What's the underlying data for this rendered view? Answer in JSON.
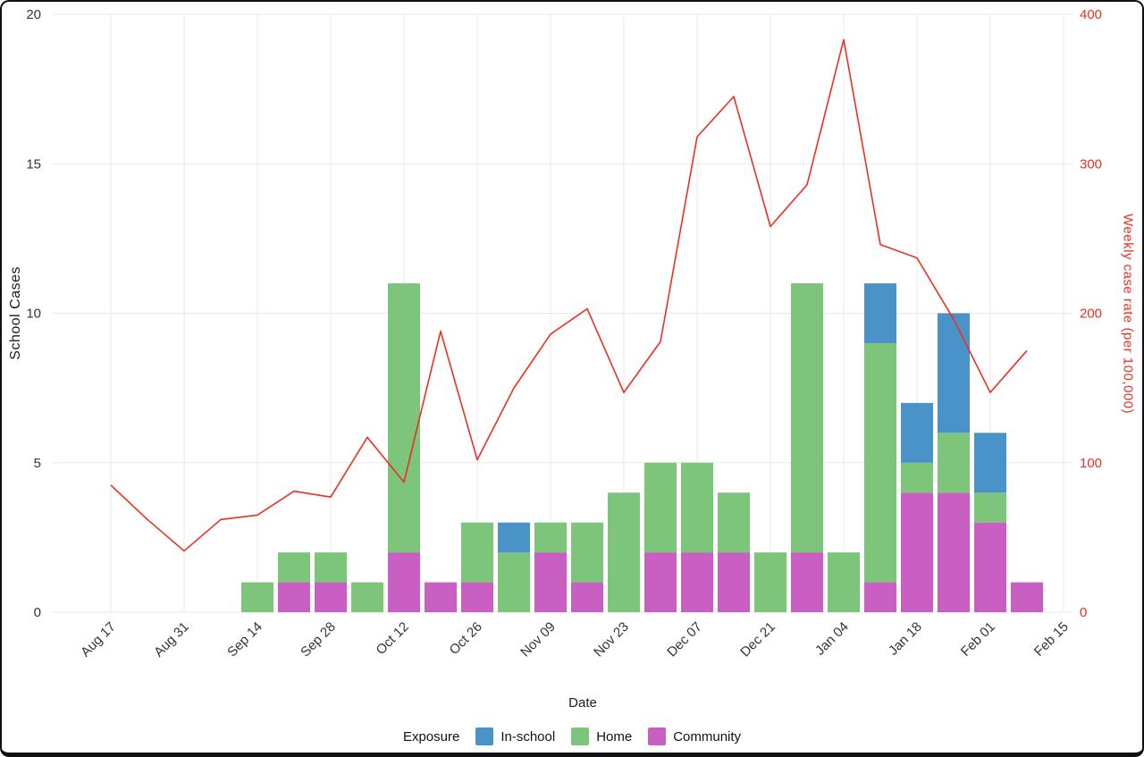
{
  "figure": {
    "border_color": "#111111",
    "background": "#ffffff"
  },
  "chart_data": {
    "type": "bar",
    "subtype": "stacked-weekly-bars-with-line-overlay",
    "xlabel": "Date",
    "x_tick_labels": [
      "Aug 17",
      "Aug 31",
      "Sep 14",
      "Sep 28",
      "Oct 12",
      "Oct 26",
      "Nov 09",
      "Nov 23",
      "Dec 07",
      "Dec 21",
      "Jan 04",
      "Jan 18",
      "Feb 01",
      "Feb 15"
    ],
    "weeks": [
      "Aug 17",
      "Aug 24",
      "Aug 31",
      "Sep 07",
      "Sep 14",
      "Sep 21",
      "Sep 28",
      "Oct 05",
      "Oct 12",
      "Oct 19",
      "Oct 26",
      "Nov 02",
      "Nov 09",
      "Nov 16",
      "Nov 23",
      "Nov 30",
      "Dec 07",
      "Dec 14",
      "Dec 21",
      "Dec 28",
      "Jan 04",
      "Jan 11",
      "Jan 18",
      "Jan 25",
      "Feb 01",
      "Feb 08"
    ],
    "stack_order_bottom_to_top": [
      "Community",
      "Home",
      "In-school"
    ],
    "bar_series": [
      {
        "name": "In-school",
        "color": "#4a93c8",
        "values": [
          0,
          0,
          0,
          0,
          0,
          0,
          0,
          0,
          0,
          0,
          0,
          1,
          0,
          0,
          0,
          0,
          0,
          0,
          0,
          0,
          0,
          2,
          2,
          4,
          2,
          0
        ]
      },
      {
        "name": "Home",
        "color": "#7cc57a",
        "values": [
          0,
          0,
          0,
          0,
          1,
          1,
          1,
          1,
          9,
          0,
          2,
          2,
          1,
          2,
          4,
          3,
          3,
          2,
          2,
          9,
          2,
          8,
          1,
          2,
          1,
          0
        ]
      },
      {
        "name": "Community",
        "color": "#c95fc3",
        "values": [
          0,
          0,
          0,
          0,
          0,
          1,
          1,
          0,
          2,
          1,
          1,
          0,
          2,
          1,
          0,
          2,
          2,
          2,
          0,
          2,
          0,
          1,
          4,
          4,
          3,
          1
        ]
      }
    ],
    "line_series": {
      "name": "Weekly case rate (per 100,000)",
      "color": "#ed2f21",
      "values": [
        85,
        62,
        41,
        62,
        65,
        81,
        77,
        117,
        87,
        188,
        102,
        150,
        186,
        203,
        147,
        181,
        318,
        345,
        258,
        286,
        383,
        246,
        237,
        196,
        147,
        175
      ]
    },
    "left_axis": {
      "label": "School Cases",
      "ticks": [
        0,
        5,
        10,
        15,
        20
      ],
      "range": [
        0,
        20
      ],
      "color": "#1a1a1a"
    },
    "right_axis": {
      "label": "Weekly case rate (per 100,000)",
      "ticks": [
        0,
        100,
        200,
        300,
        400
      ],
      "range": [
        0,
        400
      ],
      "color": "#ed2f21"
    },
    "grid": {
      "visible": true,
      "color": "#e8e8e8"
    },
    "legend": {
      "title": "Exposure",
      "position": "bottom",
      "items": [
        {
          "label": "In-school",
          "color": "#4a93c8"
        },
        {
          "label": "Home",
          "color": "#7cc57a"
        },
        {
          "label": "Community",
          "color": "#c95fc3"
        }
      ]
    }
  }
}
